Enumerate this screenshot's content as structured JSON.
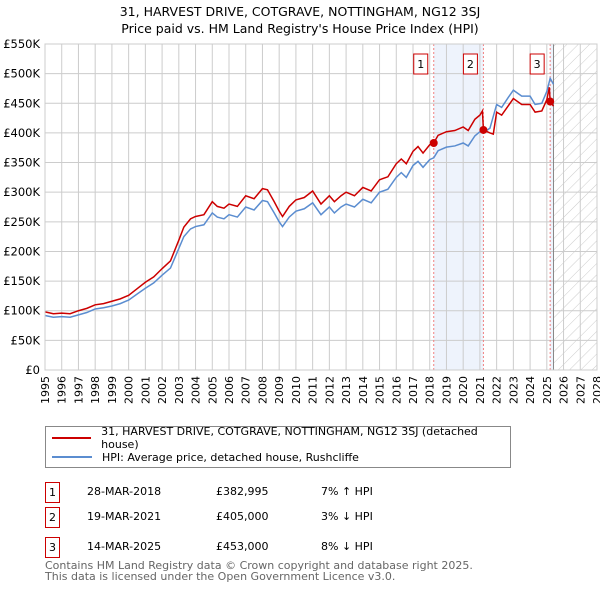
{
  "title": "31, HARVEST DRIVE, COTGRAVE, NOTTINGHAM, NG12 3SJ",
  "subtitle": "Price paid vs. HM Land Registry's House Price Index (HPI)",
  "chart_data": {
    "type": "line",
    "title": "31, HARVEST DRIVE, COTGRAVE, NOTTINGHAM, NG12 3SJ",
    "subtitle": "Price paid vs. HM Land Registry's House Price Index (HPI)",
    "xlim": [
      1995,
      2028
    ],
    "ylim": [
      0,
      550000
    ],
    "x_ticks": [
      "1995",
      "1996",
      "1997",
      "1998",
      "1999",
      "2000",
      "2001",
      "2002",
      "2003",
      "2004",
      "2005",
      "2006",
      "2007",
      "2008",
      "2009",
      "2010",
      "2011",
      "2012",
      "2013",
      "2014",
      "2015",
      "2016",
      "2017",
      "2018",
      "2019",
      "2020",
      "2021",
      "2022",
      "2023",
      "2024",
      "2025",
      "2026",
      "2027",
      "2028"
    ],
    "y_ticks": [
      "£0",
      "£50K",
      "£100K",
      "£150K",
      "£200K",
      "£250K",
      "£300K",
      "£350K",
      "£400K",
      "£450K",
      "£500K",
      "£550K"
    ],
    "grid": true,
    "series": [
      {
        "name": "31, HARVEST DRIVE, COTGRAVE, NOTTINGHAM, NG12 3SJ (detached house)",
        "color": "#cc0000",
        "points": [
          [
            1995.0,
            98
          ],
          [
            1995.5,
            95
          ],
          [
            1996.0,
            96
          ],
          [
            1996.5,
            95
          ],
          [
            1997.0,
            100
          ],
          [
            1997.5,
            104
          ],
          [
            1998.0,
            110
          ],
          [
            1998.5,
            112
          ],
          [
            1999.0,
            116
          ],
          [
            1999.5,
            120
          ],
          [
            2000.0,
            126
          ],
          [
            2000.5,
            137
          ],
          [
            2001.0,
            148
          ],
          [
            2001.5,
            157
          ],
          [
            2002.0,
            171
          ],
          [
            2002.5,
            184
          ],
          [
            2003.0,
            219
          ],
          [
            2003.3,
            241
          ],
          [
            2003.7,
            255
          ],
          [
            2004.0,
            259
          ],
          [
            2004.5,
            262
          ],
          [
            2005.0,
            284
          ],
          [
            2005.3,
            276
          ],
          [
            2005.7,
            273
          ],
          [
            2006.0,
            280
          ],
          [
            2006.5,
            276
          ],
          [
            2007.0,
            294
          ],
          [
            2007.5,
            289
          ],
          [
            2008.0,
            306
          ],
          [
            2008.3,
            304
          ],
          [
            2008.7,
            284
          ],
          [
            2009.0,
            268
          ],
          [
            2009.2,
            259
          ],
          [
            2009.6,
            276
          ],
          [
            2010.0,
            287
          ],
          [
            2010.5,
            291
          ],
          [
            2011.0,
            302
          ],
          [
            2011.5,
            280
          ],
          [
            2012.0,
            294
          ],
          [
            2012.3,
            284
          ],
          [
            2012.7,
            294
          ],
          [
            2013.0,
            300
          ],
          [
            2013.5,
            294
          ],
          [
            2014.0,
            308
          ],
          [
            2014.5,
            302
          ],
          [
            2015.0,
            321
          ],
          [
            2015.5,
            326
          ],
          [
            2016.0,
            348
          ],
          [
            2016.3,
            356
          ],
          [
            2016.6,
            348
          ],
          [
            2017.0,
            369
          ],
          [
            2017.3,
            377
          ],
          [
            2017.6,
            366
          ],
          [
            2018.0,
            380
          ],
          [
            2018.24,
            383
          ],
          [
            2018.5,
            396
          ],
          [
            2019.0,
            402
          ],
          [
            2019.5,
            404
          ],
          [
            2020.0,
            410
          ],
          [
            2020.3,
            404
          ],
          [
            2020.7,
            423
          ],
          [
            2021.0,
            430
          ],
          [
            2021.15,
            437
          ],
          [
            2021.21,
            405
          ],
          [
            2021.6,
            400
          ],
          [
            2021.8,
            398
          ],
          [
            2022.0,
            435
          ],
          [
            2022.3,
            430
          ],
          [
            2022.7,
            446
          ],
          [
            2023.0,
            458
          ],
          [
            2023.5,
            448
          ],
          [
            2024.0,
            448
          ],
          [
            2024.3,
            435
          ],
          [
            2024.7,
            437
          ],
          [
            2025.0,
            456
          ],
          [
            2025.15,
            477
          ],
          [
            2025.2,
            453
          ],
          [
            2025.4,
            445
          ]
        ]
      },
      {
        "name": "HPI: Average price, detached house, Rushcliffe",
        "color": "#5b8dd0",
        "points": [
          [
            1995.0,
            92
          ],
          [
            1995.5,
            89
          ],
          [
            1996.0,
            90
          ],
          [
            1996.5,
            89
          ],
          [
            1997.0,
            93
          ],
          [
            1997.5,
            97
          ],
          [
            1998.0,
            103
          ],
          [
            1998.5,
            105
          ],
          [
            1999.0,
            108
          ],
          [
            1999.5,
            112
          ],
          [
            2000.0,
            118
          ],
          [
            2000.5,
            128
          ],
          [
            2001.0,
            138
          ],
          [
            2001.5,
            147
          ],
          [
            2002.0,
            160
          ],
          [
            2002.5,
            172
          ],
          [
            2003.0,
            205
          ],
          [
            2003.3,
            225
          ],
          [
            2003.7,
            238
          ],
          [
            2004.0,
            242
          ],
          [
            2004.5,
            245
          ],
          [
            2005.0,
            265
          ],
          [
            2005.3,
            258
          ],
          [
            2005.7,
            255
          ],
          [
            2006.0,
            262
          ],
          [
            2006.5,
            258
          ],
          [
            2007.0,
            275
          ],
          [
            2007.5,
            270
          ],
          [
            2008.0,
            286
          ],
          [
            2008.3,
            284
          ],
          [
            2008.7,
            265
          ],
          [
            2009.0,
            250
          ],
          [
            2009.2,
            242
          ],
          [
            2009.6,
            258
          ],
          [
            2010.0,
            268
          ],
          [
            2010.5,
            272
          ],
          [
            2011.0,
            282
          ],
          [
            2011.5,
            262
          ],
          [
            2012.0,
            275
          ],
          [
            2012.3,
            265
          ],
          [
            2012.7,
            275
          ],
          [
            2013.0,
            280
          ],
          [
            2013.5,
            275
          ],
          [
            2014.0,
            288
          ],
          [
            2014.5,
            282
          ],
          [
            2015.0,
            300
          ],
          [
            2015.5,
            305
          ],
          [
            2016.0,
            325
          ],
          [
            2016.3,
            333
          ],
          [
            2016.6,
            325
          ],
          [
            2017.0,
            345
          ],
          [
            2017.3,
            352
          ],
          [
            2017.6,
            342
          ],
          [
            2018.0,
            355
          ],
          [
            2018.24,
            358
          ],
          [
            2018.5,
            370
          ],
          [
            2019.0,
            376
          ],
          [
            2019.5,
            378
          ],
          [
            2020.0,
            383
          ],
          [
            2020.3,
            378
          ],
          [
            2020.7,
            395
          ],
          [
            2021.0,
            402
          ],
          [
            2021.21,
            400
          ],
          [
            2021.6,
            408
          ],
          [
            2022.0,
            448
          ],
          [
            2022.3,
            443
          ],
          [
            2022.7,
            460
          ],
          [
            2023.0,
            472
          ],
          [
            2023.5,
            462
          ],
          [
            2024.0,
            462
          ],
          [
            2024.3,
            448
          ],
          [
            2024.7,
            450
          ],
          [
            2025.0,
            470
          ],
          [
            2025.2,
            492
          ],
          [
            2025.4,
            482
          ]
        ]
      }
    ],
    "value_unit": "thousand GBP",
    "sales": [
      {
        "label": "1",
        "x": 2018.24,
        "y": 382995,
        "date": "28-MAR-2018",
        "price": "£382,995",
        "hpi": "7% ↑ HPI"
      },
      {
        "label": "2",
        "x": 2021.21,
        "y": 405000,
        "date": "19-MAR-2021",
        "price": "£405,000",
        "hpi": "3% ↓ HPI"
      },
      {
        "label": "3",
        "x": 2025.2,
        "y": 453000,
        "date": "14-MAR-2025",
        "price": "£453,000",
        "hpi": "8% ↓ HPI"
      }
    ],
    "forecast_from": 2025.4
  },
  "legend": {
    "red": "31, HARVEST DRIVE, COTGRAVE, NOTTINGHAM, NG12 3SJ (detached house)",
    "blue": "HPI: Average price, detached house, Rushcliffe"
  },
  "footer": [
    "Contains HM Land Registry data © Crown copyright and database right 2025.",
    "This data is licensed under the Open Government Licence v3.0."
  ]
}
